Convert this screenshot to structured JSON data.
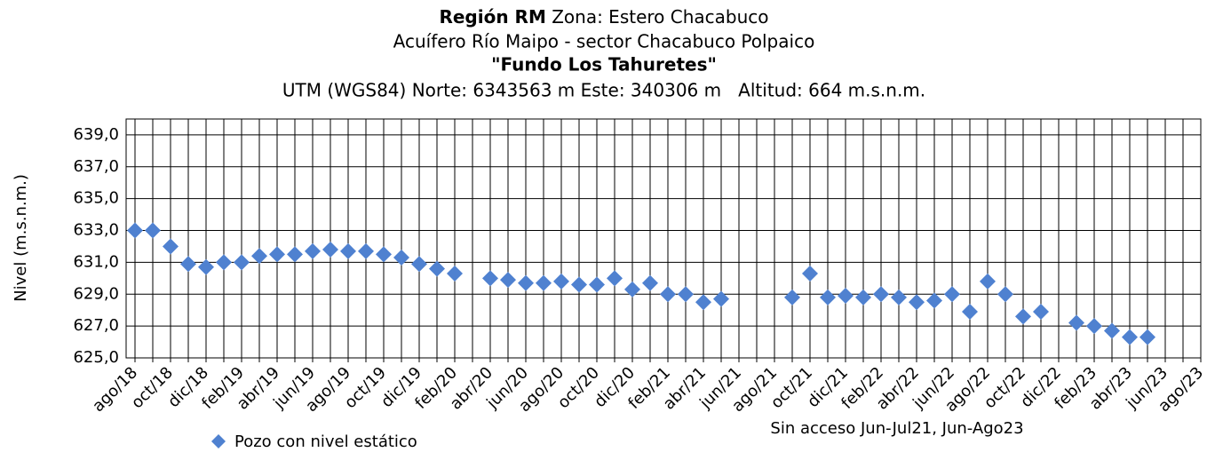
{
  "chart_data": {
    "type": "scatter",
    "title_bold": "Región RM",
    "title_rest": " Zona: Estero Chacabuco",
    "subtitle": "Acuífero Río Maipo - sector Chacabuco Polpaico",
    "subtitle2": "\"Fundo Los Tahuretes\"",
    "subtitle3": "UTM (WGS84) Norte: 6343563 m Este: 340306 m   Altitud: 664 m.s.n.m.",
    "ylabel": "Nivel (m.s.n.m.)",
    "annotation": "Sin acceso Jun-Jul21, Jun-Ago23",
    "categories": [
      "ago/18",
      null,
      "oct/18",
      null,
      "dic/18",
      null,
      "feb/19",
      null,
      "abr/19",
      null,
      "jun/19",
      null,
      "ago/19",
      null,
      "oct/19",
      null,
      "dic/19",
      null,
      "feb/20",
      null,
      "abr/20",
      null,
      "jun/20",
      null,
      "ago/20",
      null,
      "oct/20",
      null,
      "dic/20",
      null,
      "feb/21",
      null,
      "abr/21",
      null,
      "jun/21",
      null,
      "ago/21",
      null,
      "oct/21",
      null,
      "dic/21",
      null,
      "feb/22",
      null,
      "abr/22",
      null,
      "jun/22",
      null,
      "ago/22",
      null,
      "oct/22",
      null,
      "dic/22",
      null,
      "feb/23",
      null,
      "abr/23",
      null,
      "jun/23",
      null,
      "ago/23"
    ],
    "series": [
      {
        "name": "Pozo con nivel estático",
        "color": "#4f81d0",
        "values": [
          633.0,
          633.0,
          632.0,
          630.9,
          630.7,
          631.0,
          631.0,
          631.4,
          631.5,
          631.5,
          631.7,
          631.8,
          631.7,
          631.7,
          631.5,
          631.3,
          630.9,
          630.6,
          630.3,
          null,
          630.0,
          629.9,
          629.7,
          629.7,
          629.8,
          629.6,
          629.6,
          630.0,
          629.3,
          629.7,
          629.0,
          629.0,
          628.5,
          628.7,
          null,
          null,
          null,
          628.8,
          630.3,
          628.8,
          628.9,
          628.8,
          629.0,
          628.8,
          628.5,
          628.6,
          629.0,
          627.9,
          629.8,
          629.0,
          627.6,
          627.9,
          null,
          627.2,
          627.0,
          626.7,
          626.3,
          626.3,
          null,
          null,
          null
        ]
      }
    ],
    "ylim": [
      625,
      640
    ],
    "yticks": [
      {
        "value": 625,
        "label": "625,0"
      },
      {
        "value": 627,
        "label": "627,0"
      },
      {
        "value": 629,
        "label": "629,0"
      },
      {
        "value": 631,
        "label": "631,0"
      },
      {
        "value": 633,
        "label": "633,0"
      },
      {
        "value": 635,
        "label": "635,0"
      },
      {
        "value": 637,
        "label": "637,0"
      },
      {
        "value": 639,
        "label": "639,0"
      }
    ],
    "grid": true
  }
}
